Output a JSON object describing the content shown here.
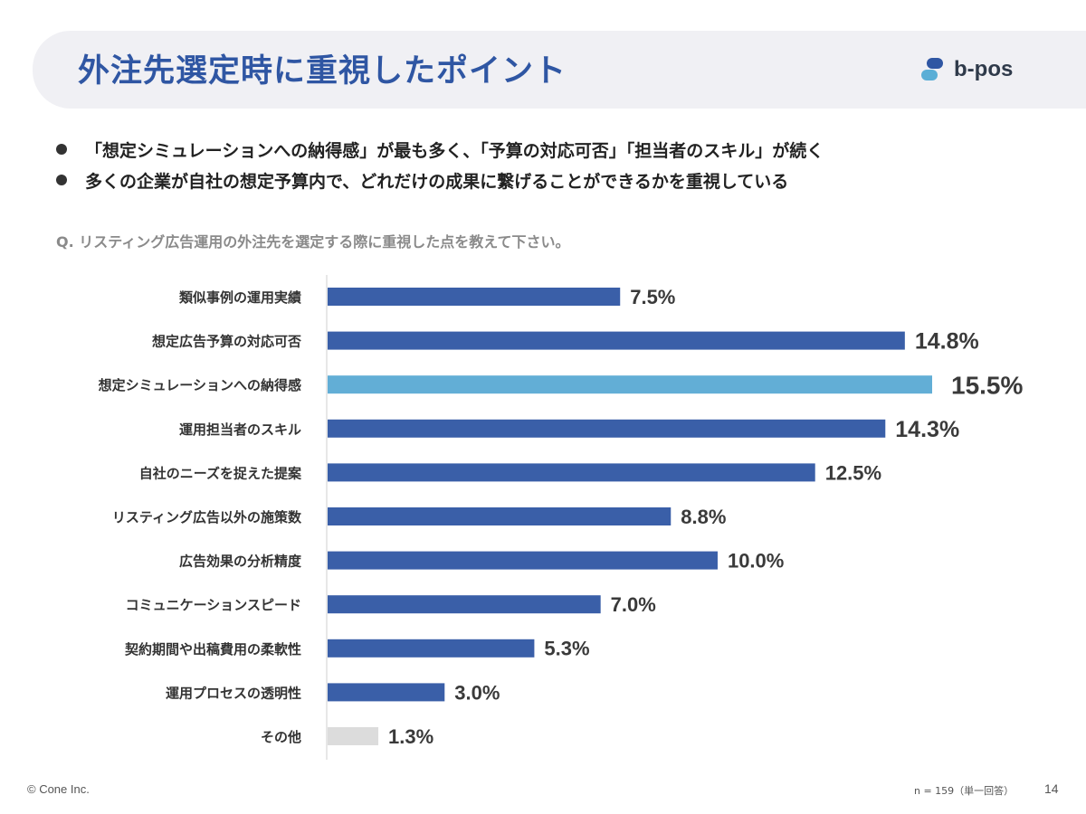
{
  "header": {
    "title": "外注先選定時に重視したポイント",
    "logo_text": "b-pos"
  },
  "bullets": [
    "「想定シミュレーションへの納得感」が最も多く、「予算の対応可否」「担当者のスキル」が続く",
    "多くの企業が自社の想定予算内で、どれだけの成果に繋げることができるかを重視している"
  ],
  "question": "Q. リスティング広告運用の外注先を選定する際に重視した点を教えて下さい。",
  "chart_data": {
    "type": "bar",
    "orientation": "horizontal",
    "categories": [
      "類似事例の運用実績",
      "想定広告予算の対応可否",
      "想定シミュレーションへの納得感",
      "運用担当者のスキル",
      "自社のニーズを捉えた提案",
      "リスティング広告以外の施策数",
      "広告効果の分析精度",
      "コミュニケーションスピード",
      "契約期間や出稿費用の柔軟性",
      "運用プロセスの透明性",
      "その他"
    ],
    "values": [
      7.5,
      14.8,
      15.5,
      14.3,
      12.5,
      8.8,
      10.0,
      7.0,
      5.3,
      3.0,
      1.3
    ],
    "value_labels": [
      "7.5%",
      "14.8%",
      "15.5%",
      "14.3%",
      "12.5%",
      "8.8%",
      "10.0%",
      "7.0%",
      "5.3%",
      "3.0%",
      "1.3%"
    ],
    "highlight_index": 2,
    "other_index": 10,
    "xlim": [
      0,
      15.5
    ],
    "unit": "%",
    "colors": {
      "default": "#3a5fa8",
      "highlight": "#62aed6",
      "other": "#dcdcdc",
      "axis": "#cfcfcf"
    }
  },
  "footer": {
    "copyright": "© Cone Inc.",
    "sample_note": "n = 159（単一回答）",
    "page_number": "14"
  }
}
